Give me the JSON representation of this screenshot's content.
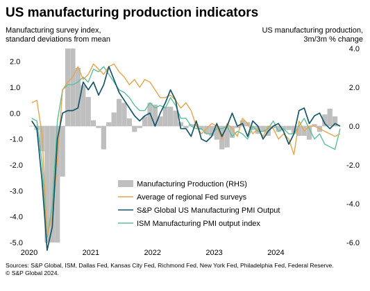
{
  "title": "US manufacturing production indicators",
  "left_axis_title": "Manufacturing survey index,\nstandard deviations from mean",
  "right_axis_title": "US manufacturing production,\n3m/3m % change",
  "sources": "Sources: S&P Global, ISM, Dallas Fed, Kansas City Fed, Richmond Fed, New York Fed, Philadelphia Fed, Federal Reserve.\n© S&P Global 2024.",
  "colors": {
    "bars": "#bfbfbf",
    "fed": "#e8a44a",
    "spg": "#15566a",
    "ism": "#5cbf9d",
    "zero_line": "#d0d0d0",
    "tick_text": "#000000"
  },
  "chart_data": {
    "type": "bar+line",
    "x_start": "2020-01",
    "x_ticks": [
      "2020",
      "2021",
      "2022",
      "2023",
      "2024"
    ],
    "left_axis": {
      "ylim": [
        -5.0,
        2.5
      ],
      "ticks": [
        "2.0",
        "1.0",
        "0.0",
        "-1.0",
        "-2.0",
        "-3.0",
        "-4.0",
        "-5.0"
      ],
      "tick_values": [
        2,
        1,
        0,
        -1,
        -2,
        -3,
        -4,
        -5
      ]
    },
    "right_axis": {
      "ylim": [
        -6.0,
        4.0
      ],
      "ticks": [
        "4.0",
        "2.0",
        "0.0",
        "-2.0",
        "-4.0",
        "-6.0"
      ],
      "tick_values": [
        4,
        2,
        0,
        -2,
        -4,
        -6
      ]
    },
    "legend": [
      "Manufacturing Production (RHS)",
      "Average of regional Fed surveys",
      "S&P Global US Manufacturing PMI Output",
      "ISM Manufacturing PMI output index"
    ],
    "legend_position": "bottom-center",
    "bars_rhs": [
      0.0,
      -0.2,
      -1.3,
      -6.0,
      -6.0,
      -6.0,
      -2.6,
      4.0,
      4.0,
      3.0,
      2.1,
      1.5,
      0.3,
      -0.1,
      -1.2,
      0.2,
      0.7,
      1.4,
      1.2,
      0.4,
      -0.3,
      -0.1,
      0.5,
      1.2,
      1.1,
      0.5,
      1.0,
      1.0,
      0.8,
      0.2,
      -0.1,
      0.1,
      0.1,
      -0.2,
      -0.4,
      -0.5,
      -0.7,
      -1.2,
      -1.1,
      -0.6,
      -0.1,
      0.3,
      0.2,
      -0.2,
      -0.4,
      -0.3,
      -0.5,
      -0.1,
      -0.3,
      -0.2,
      -0.2,
      -0.4,
      -0.5,
      -0.5,
      -0.7,
      0.1,
      -0.3,
      0.6,
      0.9,
      0.5,
      0.0
    ],
    "series": [
      {
        "name": "Average of regional Fed surveys",
        "values": [
          0.4,
          0.5,
          -0.8,
          -4.7,
          -4.0,
          -1.8,
          0.9,
          1.2,
          1.4,
          1.8,
          1.3,
          1.5,
          1.9,
          1.7,
          1.5,
          1.8,
          1.9,
          1.6,
          1.4,
          1.1,
          1.3,
          1.0,
          1.3,
          1.2,
          0.9,
          0.6,
          0.6,
          0.7,
          0.5,
          0.2,
          0.4,
          0.1,
          -0.5,
          -0.8,
          -0.6,
          -0.4,
          -0.5,
          -1.0,
          -0.4,
          -0.6,
          -0.9,
          -0.2,
          -0.4,
          -0.8,
          -0.6,
          -0.9,
          -0.5,
          -0.6,
          -1.0,
          -0.8,
          -1.0,
          -1.6,
          -0.3,
          -0.7,
          -0.5,
          -0.5,
          -0.6,
          -0.7,
          -0.8,
          -0.9,
          -0.8
        ]
      },
      {
        "name": "S&P Global US Manufacturing PMI Output",
        "values": [
          -0.3,
          -0.6,
          -2.6,
          -5.3,
          -4.4,
          -1.0,
          0.0,
          0.1,
          0.1,
          0.2,
          1.2,
          0.9,
          1.2,
          0.7,
          1.1,
          1.8,
          1.3,
          0.8,
          0.5,
          0.2,
          -0.1,
          -0.3,
          -0.1,
          0.0,
          -0.5,
          0.0,
          0.4,
          0.9,
          0.5,
          -0.6,
          -0.6,
          -0.9,
          -0.3,
          -1.0,
          -1.1,
          -0.9,
          -0.4,
          -0.9,
          -0.5,
          0.0,
          -0.5,
          -0.4,
          -0.9,
          -0.3,
          -0.5,
          -1.0,
          -0.7,
          -0.5,
          -0.4,
          -0.7,
          -1.2,
          -0.8,
          0.1,
          0.2,
          -0.4,
          -0.1,
          0.0,
          -0.4,
          -0.6,
          -0.4,
          -0.5
        ]
      },
      {
        "name": "ISM Manufacturing PMI output index",
        "values": [
          -0.2,
          -0.3,
          -1.9,
          -4.8,
          -3.6,
          -0.3,
          0.9,
          1.1,
          1.1,
          1.2,
          1.4,
          1.2,
          1.7,
          1.6,
          1.8,
          1.5,
          1.2,
          0.9,
          0.8,
          0.6,
          0.3,
          0.1,
          0.1,
          0.4,
          0.2,
          0.3,
          0.2,
          0.6,
          0.3,
          -0.2,
          -0.2,
          -0.5,
          -0.6,
          -0.6,
          -0.8,
          -0.8,
          -0.6,
          -0.6,
          -0.5,
          -0.9,
          -0.7,
          -0.8,
          -1.0,
          -0.5,
          -0.7,
          -0.7,
          -0.6,
          -0.3,
          -0.7,
          -0.6,
          -0.8,
          -0.8,
          -0.5,
          -0.2,
          -0.6,
          -1.0,
          -0.8,
          -1.2,
          -1.3,
          -1.4,
          -0.6
        ]
      }
    ]
  }
}
